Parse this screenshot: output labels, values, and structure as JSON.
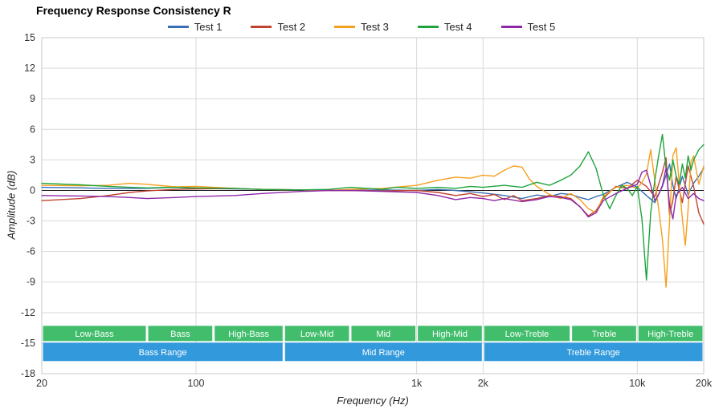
{
  "chart_data": {
    "type": "line",
    "title": "Frequency Response Consistency R",
    "xlabel": "Frequency (Hz)",
    "ylabel": "Amplitude (dB)",
    "x_scale": "log",
    "xlim": [
      20,
      20000
    ],
    "ylim": [
      -18,
      15
    ],
    "grid": true,
    "legend_position": "top",
    "grid_color": "#d9d9d9",
    "zero_line_color": "#1a1a1a",
    "band_color": "#41BD6C",
    "range_color": "#3199DC",
    "y_ticks": [
      15,
      12,
      9,
      6,
      3,
      0,
      -3,
      -6,
      -9,
      -12,
      -15,
      -18
    ],
    "x_ticks": [
      {
        "value": 20,
        "label": "20"
      },
      {
        "value": 100,
        "label": "100"
      },
      {
        "value": 1000,
        "label": "1k"
      },
      {
        "value": 2000,
        "label": "2k"
      },
      {
        "value": 10000,
        "label": "10k"
      },
      {
        "value": 20000,
        "label": "20k"
      }
    ],
    "bands": [
      {
        "label": "Low-Bass",
        "from": 20,
        "to": 60
      },
      {
        "label": "Bass",
        "from": 60,
        "to": 120
      },
      {
        "label": "High-Bass",
        "from": 120,
        "to": 250
      },
      {
        "label": "Low-Mid",
        "from": 250,
        "to": 500
      },
      {
        "label": "Mid",
        "from": 500,
        "to": 1000
      },
      {
        "label": "High-Mid",
        "from": 1000,
        "to": 2000
      },
      {
        "label": "Low-Treble",
        "from": 2000,
        "to": 5000
      },
      {
        "label": "Treble",
        "from": 5000,
        "to": 10000
      },
      {
        "label": "High-Treble",
        "from": 10000,
        "to": 20000
      }
    ],
    "ranges": [
      {
        "label": "Bass Range",
        "from": 20,
        "to": 250
      },
      {
        "label": "Mid Range",
        "from": 250,
        "to": 2000
      },
      {
        "label": "Treble Range",
        "from": 2000,
        "to": 20000
      }
    ],
    "series": [
      {
        "name": "Test 1",
        "color": "#3A6FB7",
        "points": [
          [
            20,
            0.3
          ],
          [
            30,
            0.25
          ],
          [
            40,
            0.2
          ],
          [
            50,
            0.2
          ],
          [
            60,
            0.2
          ],
          [
            80,
            0.3
          ],
          [
            100,
            0.2
          ],
          [
            150,
            0.15
          ],
          [
            200,
            0.1
          ],
          [
            300,
            0.05
          ],
          [
            400,
            0
          ],
          [
            500,
            0
          ],
          [
            700,
            0.05
          ],
          [
            1000,
            0
          ],
          [
            1250,
            0.1
          ],
          [
            1500,
            0
          ],
          [
            2000,
            -0.25
          ],
          [
            2500,
            -0.5
          ],
          [
            3000,
            -0.8
          ],
          [
            3500,
            -0.45
          ],
          [
            4000,
            -0.6
          ],
          [
            4500,
            -0.3
          ],
          [
            5000,
            -0.4
          ],
          [
            5500,
            -0.7
          ],
          [
            6000,
            -0.9
          ],
          [
            6500,
            -0.6
          ],
          [
            7000,
            -0.4
          ],
          [
            8000,
            0.3
          ],
          [
            9000,
            0.8
          ],
          [
            10000,
            0.3
          ],
          [
            11000,
            -0.5
          ],
          [
            12000,
            -1.2
          ],
          [
            13000,
            0.4
          ],
          [
            14000,
            2.6
          ],
          [
            14500,
            0.5
          ],
          [
            15000,
            -0.8
          ],
          [
            16000,
            1.4
          ],
          [
            17000,
            -0.4
          ],
          [
            18000,
            0.7
          ],
          [
            19000,
            1.4
          ],
          [
            20000,
            2.2
          ]
        ]
      },
      {
        "name": "Test 2",
        "color": "#C0432F",
        "points": [
          [
            20,
            -1.0
          ],
          [
            30,
            -0.8
          ],
          [
            40,
            -0.5
          ],
          [
            50,
            -0.2
          ],
          [
            60,
            -0.05
          ],
          [
            80,
            0.1
          ],
          [
            100,
            0.15
          ],
          [
            150,
            0.2
          ],
          [
            200,
            0.1
          ],
          [
            300,
            0.05
          ],
          [
            400,
            0
          ],
          [
            500,
            0
          ],
          [
            700,
            -0.05
          ],
          [
            1000,
            0
          ],
          [
            1250,
            -0.2
          ],
          [
            1500,
            -0.5
          ],
          [
            1750,
            -0.3
          ],
          [
            2000,
            -0.6
          ],
          [
            2250,
            -0.4
          ],
          [
            2500,
            -0.9
          ],
          [
            2750,
            -0.5
          ],
          [
            3000,
            -1.0
          ],
          [
            3500,
            -0.8
          ],
          [
            4000,
            -0.5
          ],
          [
            4500,
            -0.6
          ],
          [
            5000,
            -0.8
          ],
          [
            5500,
            -1.6
          ],
          [
            6000,
            -2.5
          ],
          [
            6500,
            -2.0
          ],
          [
            7000,
            -0.8
          ],
          [
            8000,
            0.4
          ],
          [
            9000,
            0.2
          ],
          [
            10000,
            1.0
          ],
          [
            11000,
            0.4
          ],
          [
            12000,
            -0.6
          ],
          [
            13000,
            1.8
          ],
          [
            13500,
            3.2
          ],
          [
            14000,
            -2.4
          ],
          [
            14500,
            -1.0
          ],
          [
            15000,
            1.4
          ],
          [
            16000,
            -1.2
          ],
          [
            17000,
            2.4
          ],
          [
            18000,
            0.4
          ],
          [
            19000,
            -2.2
          ],
          [
            20000,
            -3.3
          ]
        ]
      },
      {
        "name": "Test 3",
        "color": "#F5A01D",
        "points": [
          [
            20,
            0.5
          ],
          [
            30,
            0.45
          ],
          [
            40,
            0.5
          ],
          [
            50,
            0.7
          ],
          [
            60,
            0.6
          ],
          [
            80,
            0.35
          ],
          [
            100,
            0.4
          ],
          [
            150,
            0.2
          ],
          [
            200,
            0.1
          ],
          [
            300,
            0.05
          ],
          [
            400,
            0
          ],
          [
            500,
            0.1
          ],
          [
            700,
            0.2
          ],
          [
            1000,
            0.5
          ],
          [
            1250,
            1.0
          ],
          [
            1500,
            1.3
          ],
          [
            1750,
            1.2
          ],
          [
            2000,
            1.5
          ],
          [
            2250,
            1.4
          ],
          [
            2500,
            2.0
          ],
          [
            2750,
            2.4
          ],
          [
            3000,
            2.3
          ],
          [
            3250,
            1.1
          ],
          [
            3500,
            0.4
          ],
          [
            4000,
            -0.4
          ],
          [
            4500,
            -0.8
          ],
          [
            5000,
            -0.3
          ],
          [
            5500,
            -0.9
          ],
          [
            6000,
            -1.8
          ],
          [
            6500,
            -2.2
          ],
          [
            7000,
            -0.6
          ],
          [
            8000,
            0.3
          ],
          [
            9000,
            0.5
          ],
          [
            10000,
            0.2
          ],
          [
            10500,
            0.8
          ],
          [
            11000,
            1.6
          ],
          [
            11500,
            4.0
          ],
          [
            12000,
            1.0
          ],
          [
            12500,
            -1.8
          ],
          [
            13000,
            -4.8
          ],
          [
            13500,
            -9.5
          ],
          [
            14000,
            -3.0
          ],
          [
            14500,
            3.4
          ],
          [
            15000,
            4.2
          ],
          [
            15500,
            0.6
          ],
          [
            16000,
            -2.8
          ],
          [
            16500,
            -5.4
          ],
          [
            17000,
            -1.8
          ],
          [
            17500,
            2.8
          ],
          [
            18000,
            3.4
          ],
          [
            19000,
            0.6
          ],
          [
            20000,
            2.4
          ]
        ]
      },
      {
        "name": "Test 4",
        "color": "#1EA43C",
        "points": [
          [
            20,
            0.7
          ],
          [
            30,
            0.55
          ],
          [
            40,
            0.4
          ],
          [
            50,
            0.3
          ],
          [
            60,
            0.25
          ],
          [
            80,
            0.3
          ],
          [
            100,
            0.25
          ],
          [
            150,
            0.2
          ],
          [
            200,
            0.1
          ],
          [
            300,
            0.05
          ],
          [
            400,
            0.1
          ],
          [
            500,
            0.3
          ],
          [
            600,
            0.2
          ],
          [
            700,
            0.1
          ],
          [
            800,
            0.3
          ],
          [
            1000,
            0.2
          ],
          [
            1250,
            0.3
          ],
          [
            1500,
            0.2
          ],
          [
            1750,
            0.4
          ],
          [
            2000,
            0.3
          ],
          [
            2500,
            0.5
          ],
          [
            3000,
            0.3
          ],
          [
            3500,
            0.8
          ],
          [
            4000,
            0.5
          ],
          [
            4500,
            1.0
          ],
          [
            5000,
            1.5
          ],
          [
            5500,
            2.4
          ],
          [
            6000,
            3.8
          ],
          [
            6500,
            2.2
          ],
          [
            7000,
            -0.4
          ],
          [
            7500,
            -1.8
          ],
          [
            8000,
            -0.5
          ],
          [
            8500,
            0.5
          ],
          [
            9000,
            0.2
          ],
          [
            9500,
            -0.5
          ],
          [
            10000,
            0.4
          ],
          [
            10500,
            -2.8
          ],
          [
            11000,
            -8.8
          ],
          [
            11500,
            -2.2
          ],
          [
            12000,
            1.0
          ],
          [
            12500,
            3.4
          ],
          [
            13000,
            5.5
          ],
          [
            13500,
            2.2
          ],
          [
            14000,
            1.0
          ],
          [
            14500,
            3.0
          ],
          [
            15000,
            1.4
          ],
          [
            15500,
            0.6
          ],
          [
            16000,
            2.6
          ],
          [
            16500,
            1.2
          ],
          [
            17000,
            3.4
          ],
          [
            17500,
            2.0
          ],
          [
            18000,
            3.0
          ],
          [
            19000,
            4.0
          ],
          [
            20000,
            4.5
          ]
        ]
      },
      {
        "name": "Test 5",
        "color": "#8F27A8",
        "points": [
          [
            20,
            -0.5
          ],
          [
            30,
            -0.55
          ],
          [
            40,
            -0.6
          ],
          [
            50,
            -0.7
          ],
          [
            60,
            -0.8
          ],
          [
            80,
            -0.7
          ],
          [
            100,
            -0.6
          ],
          [
            150,
            -0.5
          ],
          [
            200,
            -0.3
          ],
          [
            300,
            -0.1
          ],
          [
            400,
            0
          ],
          [
            500,
            0
          ],
          [
            700,
            -0.1
          ],
          [
            1000,
            -0.2
          ],
          [
            1250,
            -0.5
          ],
          [
            1500,
            -0.9
          ],
          [
            1750,
            -0.7
          ],
          [
            2000,
            -0.8
          ],
          [
            2250,
            -1.0
          ],
          [
            2500,
            -0.8
          ],
          [
            3000,
            -1.1
          ],
          [
            3500,
            -0.9
          ],
          [
            4000,
            -0.6
          ],
          [
            4500,
            -0.7
          ],
          [
            5000,
            -0.9
          ],
          [
            5500,
            -1.6
          ],
          [
            6000,
            -2.6
          ],
          [
            6500,
            -2.2
          ],
          [
            7000,
            -1.0
          ],
          [
            8000,
            -0.3
          ],
          [
            9000,
            0.2
          ],
          [
            10000,
            0.6
          ],
          [
            10500,
            1.8
          ],
          [
            11000,
            2.0
          ],
          [
            11500,
            0.5
          ],
          [
            12000,
            -1.0
          ],
          [
            12500,
            -0.4
          ],
          [
            13000,
            0.5
          ],
          [
            13500,
            2.2
          ],
          [
            14000,
            -1.4
          ],
          [
            14500,
            -2.8
          ],
          [
            15000,
            -0.5
          ],
          [
            16000,
            0.3
          ],
          [
            17000,
            -0.8
          ],
          [
            18000,
            -0.3
          ],
          [
            19000,
            -0.8
          ],
          [
            20000,
            -1.0
          ]
        ]
      }
    ]
  }
}
